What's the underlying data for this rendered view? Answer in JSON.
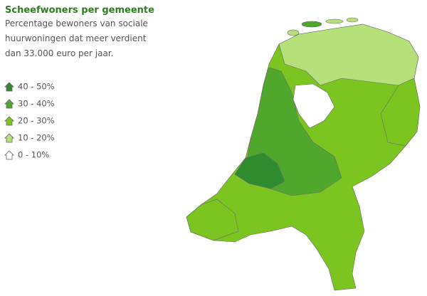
{
  "header": {
    "title": "Scheefwoners per gemeente",
    "subtitle": [
      "Percentage bewoners van sociale",
      "huurwoningen dat meer verdient",
      "dan 33.000 euro per jaar."
    ]
  },
  "legend": [
    {
      "label": "40 - 50%",
      "color": "#2e8b2e"
    },
    {
      "label": "30 - 40%",
      "color": "#4fa82b"
    },
    {
      "label": "20 - 30%",
      "color": "#7cc520"
    },
    {
      "label": "10 - 20%",
      "color": "#b5e07a"
    },
    {
      "label": "0 - 10%",
      "color": "#ffffff"
    }
  ]
}
